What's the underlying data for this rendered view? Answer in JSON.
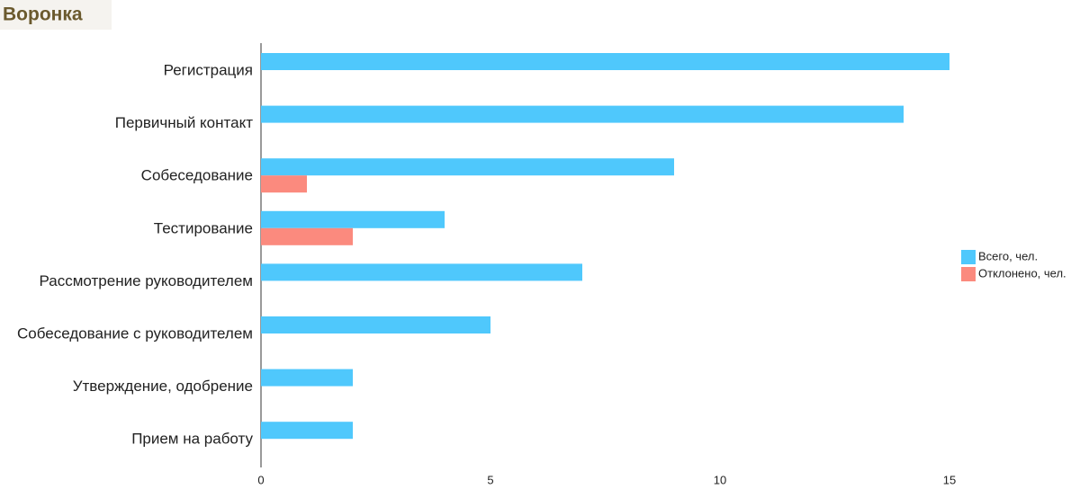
{
  "chart_data": {
    "type": "bar",
    "orientation": "horizontal",
    "title": "Воронка",
    "categories": [
      "Регистрация",
      "Первичный контакт",
      "Собеседование",
      "Тестирование",
      "Рассмотрение руководителем",
      "Собеседование с руководителем",
      "Утверждение, одобрение",
      "Прием на работу"
    ],
    "series": [
      {
        "name": "Всего, чел.",
        "color": "#4fc8fc",
        "values": [
          15,
          14,
          9,
          4,
          7,
          5,
          2,
          2
        ]
      },
      {
        "name": "Отклонено, чел.",
        "color": "#fb8a7e",
        "values": [
          null,
          null,
          1,
          2,
          null,
          null,
          null,
          null
        ]
      }
    ],
    "xlim": [
      0,
      15
    ],
    "xticks": [
      0,
      5,
      10,
      15
    ],
    "grid": false,
    "legend": "right"
  }
}
